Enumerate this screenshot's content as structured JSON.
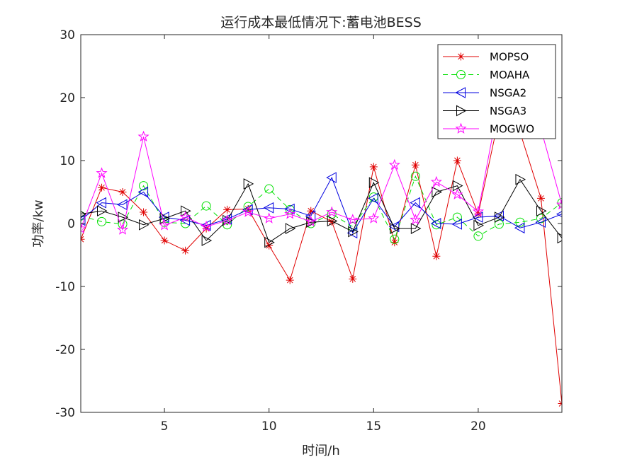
{
  "chart_data": {
    "type": "line",
    "title": "运行成本最低情况下:蓄电池BESS",
    "xlabel": "时间/h",
    "ylabel": "功率/kw",
    "xlim": [
      1,
      24
    ],
    "ylim": [
      -30,
      30
    ],
    "xticks": [
      5,
      10,
      15,
      20
    ],
    "yticks": [
      -30,
      -20,
      -10,
      0,
      10,
      20,
      30
    ],
    "grid": false,
    "legend_position": "top-right",
    "x": [
      1,
      2,
      3,
      4,
      5,
      6,
      7,
      8,
      9,
      10,
      11,
      12,
      13,
      14,
      15,
      16,
      17,
      18,
      19,
      20,
      21,
      22,
      23,
      24
    ],
    "series": [
      {
        "name": "MOPSO",
        "color": "#e00000",
        "marker": "asterisk",
        "line": "solid",
        "values": [
          -2.5,
          5.7,
          5.0,
          1.8,
          -2.7,
          -4.3,
          -0.8,
          2.2,
          2.3,
          -3.5,
          -9.0,
          2.0,
          0.3,
          -8.8,
          9.0,
          -3.0,
          9.3,
          -5.2,
          10.0,
          1.5,
          17.0,
          14.5,
          4.0,
          -28.6
        ]
      },
      {
        "name": "MOAHA",
        "color": "#00e000",
        "marker": "circle",
        "line": "dashed",
        "values": [
          1.2,
          0.3,
          -0.1,
          6.0,
          0.2,
          0.0,
          2.8,
          -0.2,
          2.7,
          5.5,
          2.2,
          0.0,
          1.5,
          -0.5,
          4.2,
          -2.5,
          7.5,
          -0.2,
          1.0,
          -2.0,
          -0.1,
          0.2,
          0.8,
          3.3
        ]
      },
      {
        "name": "NSGA2",
        "color": "#0000e0",
        "marker": "triangle-left",
        "line": "solid",
        "values": [
          0.5,
          3.3,
          3.0,
          5.0,
          1.0,
          0.5,
          -0.3,
          0.7,
          2.2,
          2.5,
          2.3,
          1.2,
          7.3,
          -1.5,
          4.0,
          -0.5,
          3.3,
          0.0,
          -0.1,
          1.0,
          1.2,
          -0.7,
          0.2,
          1.5
        ]
      },
      {
        "name": "NSGA3",
        "color": "#000000",
        "marker": "triangle-right",
        "line": "solid",
        "values": [
          1.5,
          2.0,
          1.0,
          -0.2,
          0.8,
          2.0,
          -2.7,
          0.5,
          6.3,
          -3.0,
          -0.8,
          0.2,
          0.4,
          -1.3,
          6.5,
          -0.8,
          -0.8,
          5.0,
          6.0,
          -0.3,
          1.0,
          7.0,
          2.0,
          -2.3
        ]
      },
      {
        "name": "MOGWO",
        "color": "#ff00ff",
        "marker": "star",
        "line": "solid",
        "values": [
          -0.8,
          8.0,
          -1.0,
          13.8,
          -0.3,
          1.0,
          -0.5,
          0.5,
          1.8,
          0.8,
          1.5,
          0.3,
          1.8,
          0.6,
          0.8,
          9.3,
          0.6,
          6.6,
          4.6,
          1.9,
          19.5,
          21.0,
          15.0,
          3.0
        ]
      }
    ]
  }
}
